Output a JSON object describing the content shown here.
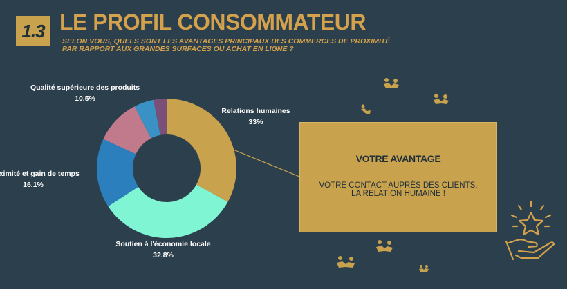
{
  "header": {
    "badge": "1.3",
    "title": "LE PROFIL CONSOMMATEUR",
    "subtitle": "SELON VOUS, QUELS SONT LES AVANTAGES PRINCIPAUX DES COMMERCES DE PROXIMITÉ\n PAR RAPPORT AUX GRANDES SURFACES OU ACHAT EN LIGNE ?"
  },
  "callout": {
    "title": "VOTRE AVANTAGE",
    "text": "VOTRE CONTACT AUPRÈS DES CLIENTS,\nLA RELATION HUMAINE !"
  },
  "chart_data": {
    "type": "pie",
    "donut": true,
    "slices": [
      {
        "label": "Relations humaines",
        "value_label": "33%",
        "value": 33,
        "color": "#c9a24d"
      },
      {
        "label": "Soutien à l'économie locale",
        "value_label": "32.8%",
        "value": 32.8,
        "color": "#7ff5d4"
      },
      {
        "label": "Proximité et gain de temps",
        "value_label": "16.1%",
        "value": 16.1,
        "color": "#2b7fbc"
      },
      {
        "label": "Qualité supérieure des produits",
        "value_label": "10.5%",
        "value": 10.5,
        "color": "#c07a8c"
      },
      {
        "label": "",
        "value_label": "",
        "value": 4.6,
        "color": "#3a91c4"
      },
      {
        "label": "",
        "value_label": "",
        "value": 3.0,
        "color": "#7a4f78"
      }
    ],
    "start_angle": "top",
    "direction": "clockwise",
    "background_color": "#2c3f4c",
    "accent_color": "#d4a24c"
  },
  "decorations": {
    "icons": [
      "handshake-icon",
      "handshake-icon",
      "handshake-icon",
      "handshake-icon",
      "handshake-icon",
      "handshake-icon",
      "star-hand-icon"
    ]
  }
}
